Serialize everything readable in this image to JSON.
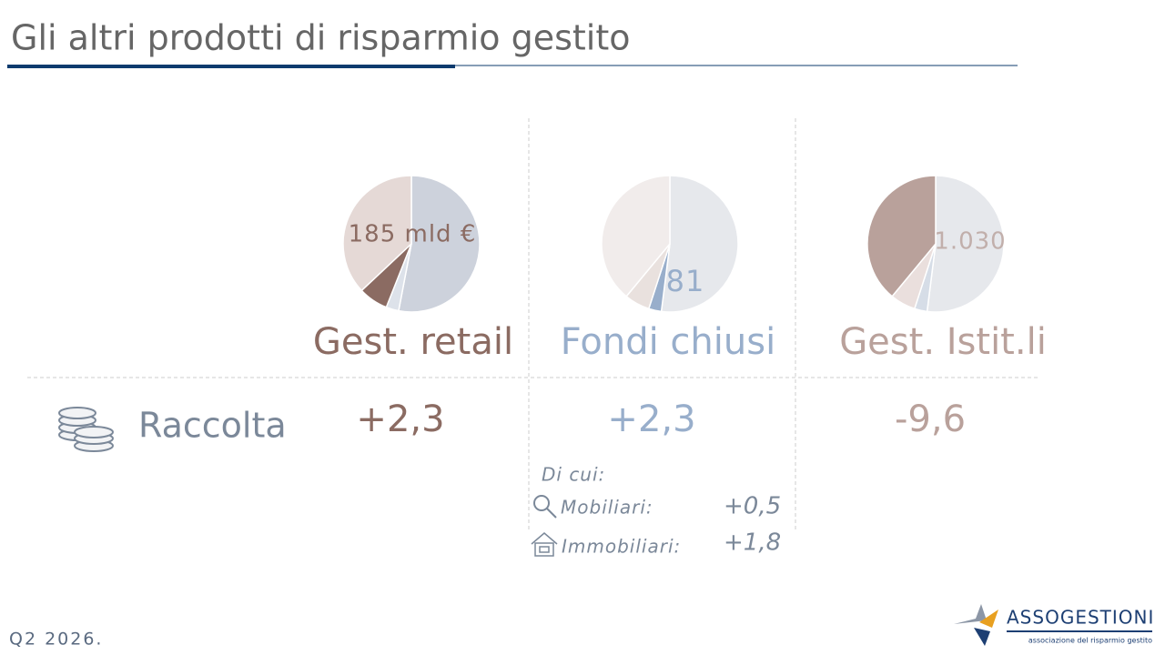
{
  "header": {
    "title": "Gli altri prodotti di risparmio gestito"
  },
  "chart_data": [
    {
      "type": "pie",
      "title": "Gest. retail",
      "center_label": "185 mld €",
      "values": [
        53,
        3,
        7,
        37
      ],
      "colors": [
        "#cdd2dc",
        "#dde2ea",
        "#8b6b62",
        "#e5d9d6"
      ],
      "color": "#8b6b62"
    },
    {
      "type": "pie",
      "title": "Fondi chiusi",
      "center_label": "81",
      "values": [
        52,
        3,
        6,
        39
      ],
      "colors": [
        "#e6e8ec",
        "#98aecb",
        "#e9e1de",
        "#f1eceb"
      ],
      "color": "#98aecb"
    },
    {
      "type": "pie",
      "title": "Gest. Istit.li",
      "center_label": "1.030",
      "values": [
        52,
        3,
        6,
        39
      ],
      "colors": [
        "#e6e8ec",
        "#d6dde7",
        "#eadfdd",
        "#b9a19b"
      ],
      "color": "#b9a19b"
    }
  ],
  "raccolta": {
    "label": "Raccolta",
    "values": [
      "+2,3",
      "+2,3",
      "-9,6"
    ]
  },
  "breakdown": {
    "title": "Di cui:",
    "rows": [
      [
        "Mobiliari:",
        "+0,5"
      ],
      [
        "Immobiliari:",
        "+1,8"
      ]
    ]
  },
  "footer": {
    "date": "Q2 2026.",
    "logo": "ASSOGESTIONI",
    "logo_subtitle": "associazione del risparmio gestito"
  }
}
